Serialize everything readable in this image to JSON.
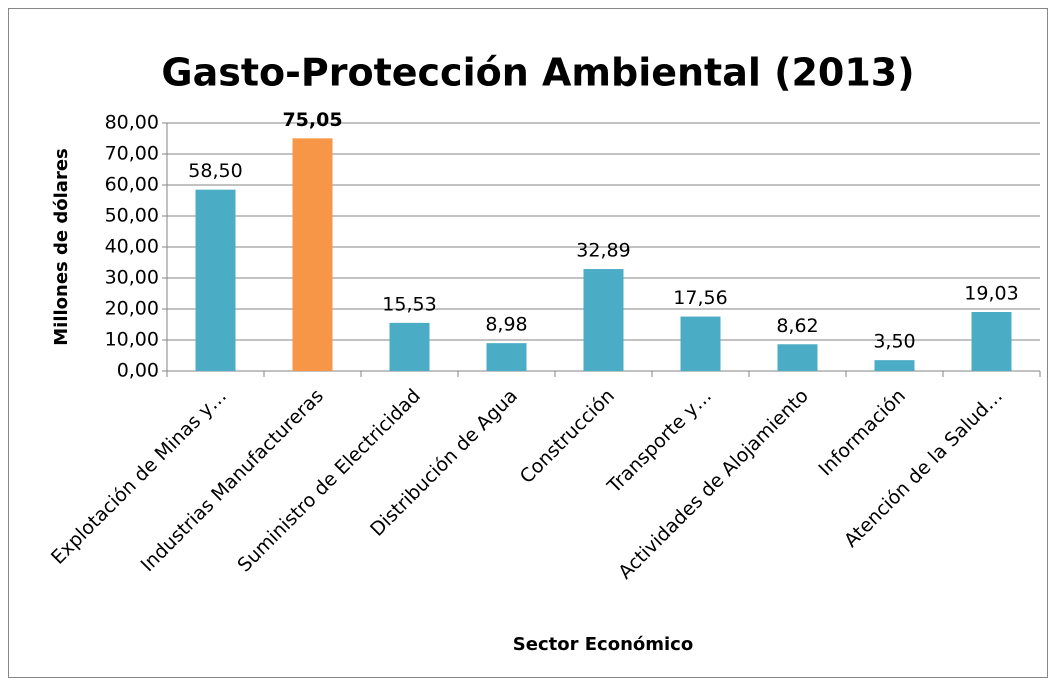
{
  "chart_data": {
    "type": "bar",
    "title": "Gasto-Protección Ambiental (2013)",
    "y_label": "Millones de dólares",
    "x_label": "Sector Económico",
    "categories": [
      "Explotación de Minas y…",
      "Industrias Manufactureras",
      "Suministro de Electricidad",
      "Distribución de Agua",
      "Construcción",
      "Transporte y…",
      "Actividades de Alojamiento",
      "Información",
      "Atención de la Salud…"
    ],
    "values": [
      58.5,
      75.05,
      15.53,
      8.98,
      32.89,
      17.56,
      8.62,
      3.5,
      19.03
    ],
    "value_labels": [
      "58,50",
      "75,05",
      "15,53",
      "8,98",
      "32,89",
      "17,56",
      "8,62",
      "3,50",
      "19,03"
    ],
    "value_label_bold": [
      false,
      true,
      false,
      false,
      false,
      false,
      false,
      false,
      false
    ],
    "colors": [
      "#4bacc6",
      "#f79646",
      "#4bacc6",
      "#4bacc6",
      "#4bacc6",
      "#4bacc6",
      "#4bacc6",
      "#4bacc6",
      "#4bacc6"
    ],
    "ylim": [
      0,
      80
    ],
    "yticks": [
      {
        "value": 0,
        "label": "0,00"
      },
      {
        "value": 10,
        "label": "10,00"
      },
      {
        "value": 20,
        "label": "20,00"
      },
      {
        "value": 30,
        "label": "30,00"
      },
      {
        "value": 40,
        "label": "40,00"
      },
      {
        "value": 50,
        "label": "50,00"
      },
      {
        "value": 60,
        "label": "60,00"
      },
      {
        "value": 70,
        "label": "70,00"
      },
      {
        "value": 80,
        "label": "80,00"
      }
    ],
    "grid": true
  }
}
